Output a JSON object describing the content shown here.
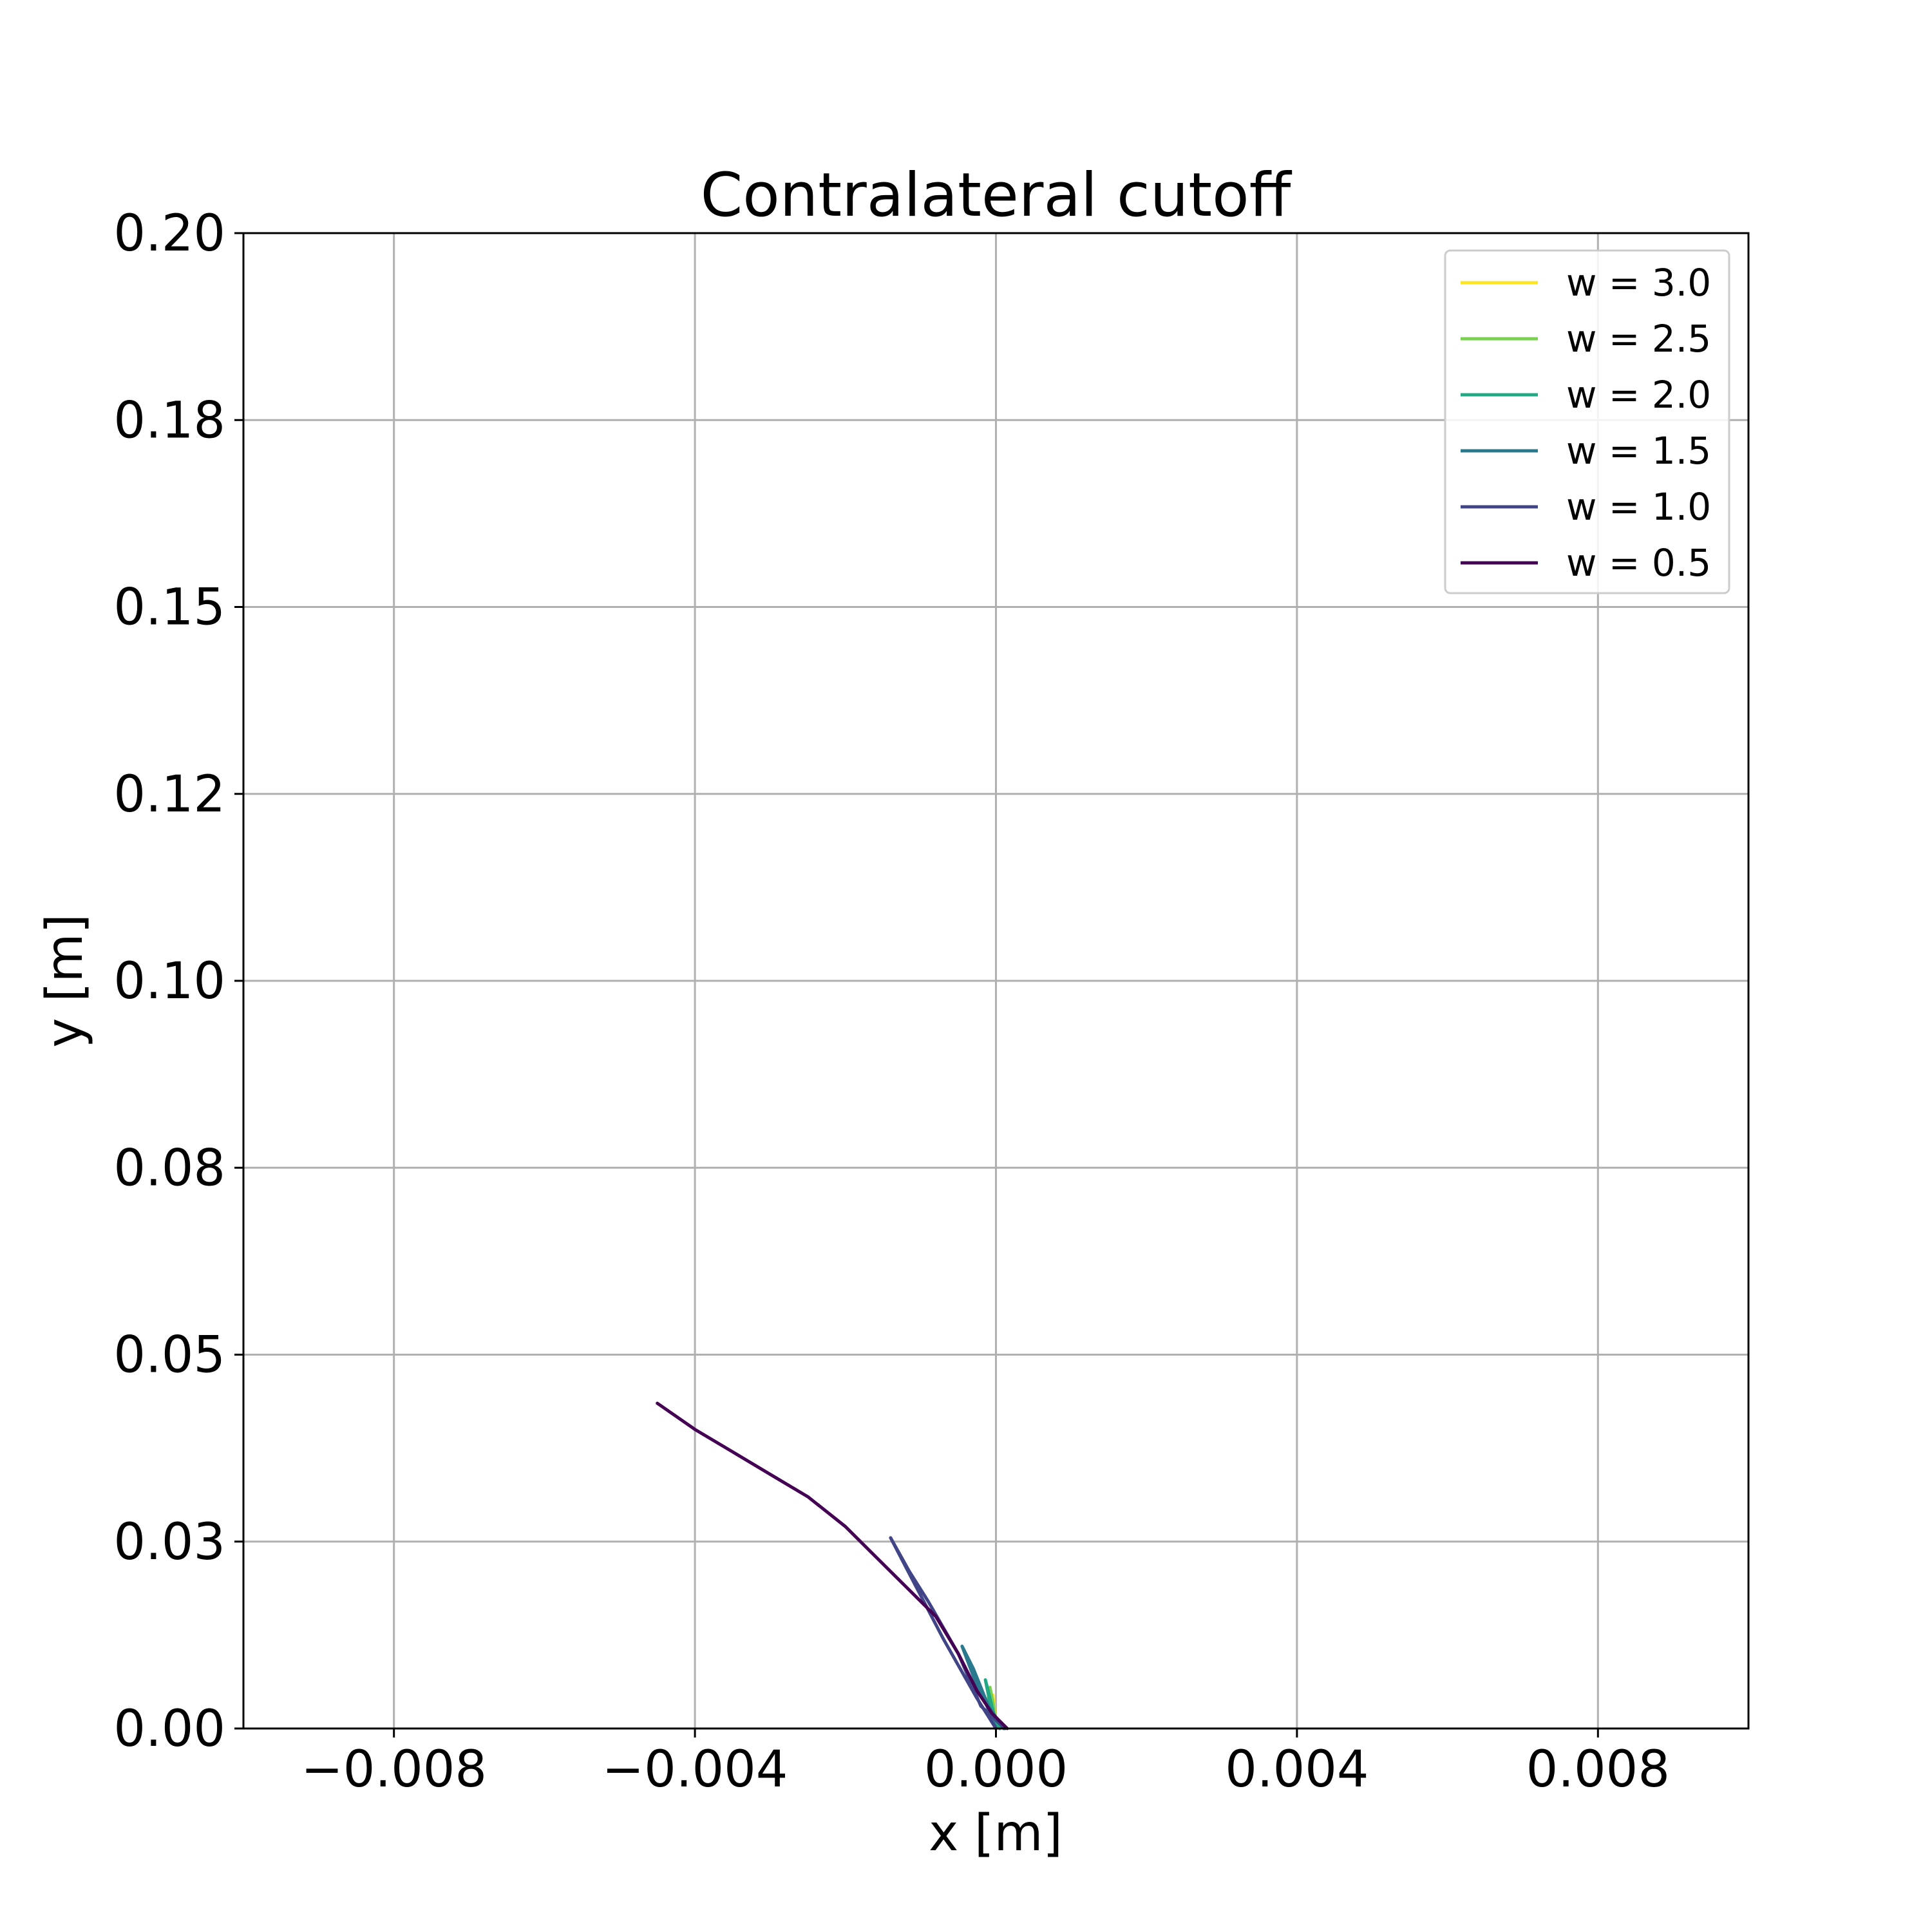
{
  "chart_data": {
    "type": "line",
    "title": "Contralateral cutoff",
    "xlabel": "x [m]",
    "ylabel": "y [m]",
    "xlim": [
      -0.01,
      0.01
    ],
    "ylim": [
      0.0,
      0.2
    ],
    "grid": true,
    "legend_position": "top-right",
    "x_ticks": [
      -0.008,
      -0.004,
      0.0,
      0.004,
      0.008
    ],
    "x_tick_labels": [
      "−0.008",
      "−0.004",
      "0.000",
      "0.004",
      "0.008"
    ],
    "y_ticks": [
      0.0,
      0.025,
      0.05,
      0.075,
      0.1,
      0.125,
      0.15,
      0.175,
      0.2
    ],
    "y_tick_labels": [
      "0.00",
      "0.03",
      "0.05",
      "0.08",
      "0.10",
      "0.12",
      "0.15",
      "0.18",
      "0.20"
    ],
    "series": [
      {
        "name": "w = 3.0",
        "color": "#fde725",
        "x": [
          0.0,
          -3e-05,
          -5e-05,
          -4e-05,
          -2e-05,
          0.0
        ],
        "y": [
          0.0,
          0.0015,
          0.003,
          0.0045,
          0.0025,
          0.0
        ]
      },
      {
        "name": "w = 2.5",
        "color": "#7ad151",
        "x": [
          0.0,
          -5e-05,
          -0.0001,
          -8e-05,
          -3e-05,
          0.0
        ],
        "y": [
          0.0,
          0.002,
          0.004,
          0.0055,
          0.003,
          0.0
        ]
      },
      {
        "name": "w = 2.0",
        "color": "#22a884",
        "x": [
          5e-05,
          -5e-05,
          -0.00011,
          -0.00014,
          -9e-05,
          -3e-05,
          0.0
        ],
        "y": [
          0.0,
          0.002,
          0.005,
          0.0065,
          0.0045,
          0.002,
          0.0
        ]
      },
      {
        "name": "w = 1.5",
        "color": "#2a788e",
        "x": [
          0.0001,
          -0.0001,
          -0.0003,
          -0.00045,
          -0.0003,
          -0.00012,
          0.0
        ],
        "y": [
          0.0,
          0.003,
          0.008,
          0.011,
          0.007,
          0.003,
          0.0
        ]
      },
      {
        "name": "w = 1.0",
        "color": "#414487",
        "x": [
          0.00012,
          -0.0002,
          -0.0005,
          -0.0009,
          -0.00115,
          -0.0014,
          -0.0007,
          -0.00025,
          0.0
        ],
        "y": [
          0.0,
          0.003,
          0.01,
          0.017,
          0.021,
          0.0255,
          0.012,
          0.004,
          0.0
        ]
      },
      {
        "name": "w = 0.5",
        "color": "#440154",
        "x": [
          0.00015,
          -5e-05,
          -0.00025,
          -0.0005,
          -0.0008,
          -0.0012,
          -0.0016,
          -0.002,
          -0.0025,
          -0.003,
          -0.0035,
          -0.004,
          -0.0045
        ],
        "y": [
          0.0,
          0.002,
          0.005,
          0.01,
          0.015,
          0.019,
          0.023,
          0.027,
          0.031,
          0.034,
          0.037,
          0.04,
          0.0435
        ]
      }
    ]
  }
}
